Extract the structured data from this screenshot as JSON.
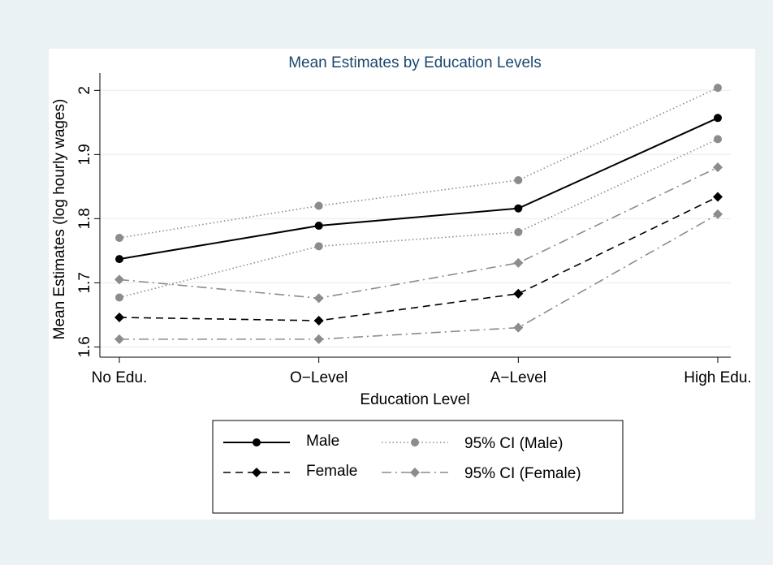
{
  "chart_data": {
    "type": "line",
    "title": "Mean Estimates by Education Levels",
    "x_label": "Education Level",
    "y_label": "Mean Estimates (log hourly wages)",
    "categories": [
      "No Edu.",
      "O−Level",
      "A−Level",
      "High Edu."
    ],
    "series": [
      {
        "name": "Male",
        "color": "#000000",
        "dash": "solid",
        "marker": "circle",
        "values": [
          1.737,
          1.789,
          1.816,
          1.957
        ]
      },
      {
        "name": "95% CI (Male)",
        "color": "#8c8c8c",
        "dash": "dotted",
        "marker": "circle",
        "lower": [
          1.677,
          1.757,
          1.779,
          1.924
        ],
        "upper": [
          1.77,
          1.82,
          1.86,
          2.004
        ]
      },
      {
        "name": "Female",
        "color": "#000000",
        "dash": "dashed",
        "marker": "diamond",
        "values": [
          1.646,
          1.641,
          1.683,
          1.834
        ]
      },
      {
        "name": "95% CI (Female)",
        "color": "#8c8c8c",
        "dash": "dashdot",
        "marker": "diamond",
        "lower": [
          1.612,
          1.612,
          1.63,
          1.807
        ],
        "upper": [
          1.705,
          1.676,
          1.731,
          1.88
        ]
      }
    ],
    "ylim": [
      1.584,
      2.027
    ],
    "yticks": [
      {
        "value": 1.6,
        "label": "1.6"
      },
      {
        "value": 1.7,
        "label": "1.7"
      },
      {
        "value": 1.8,
        "label": "1.8"
      },
      {
        "value": 1.9,
        "label": "1.9"
      },
      2
    ],
    "grid": true,
    "legend": "bottom"
  }
}
